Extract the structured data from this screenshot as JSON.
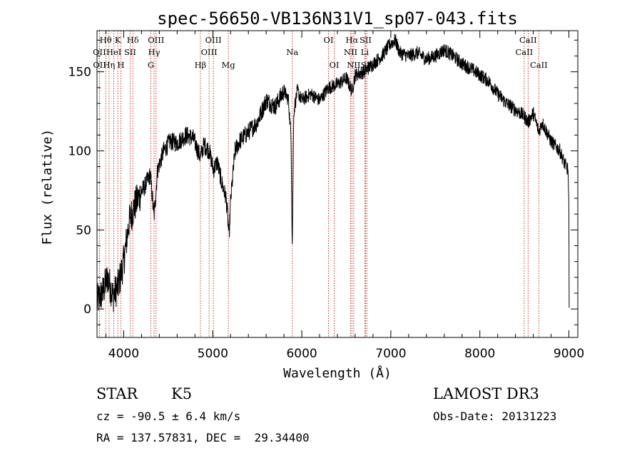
{
  "chart_data": {
    "type": "line",
    "title": "spec-56650-VB136N31V1_sp07-043.fits",
    "xlabel": "Wavelength (Å)",
    "ylabel": "Flux (relative)",
    "xlim": [
      3700,
      9100
    ],
    "ylim": [
      -18,
      176
    ],
    "x_ticks": [
      4000,
      5000,
      6000,
      7000,
      8000,
      9000
    ],
    "y_ticks": [
      0,
      50,
      100,
      150
    ],
    "series": [
      {
        "name": "flux",
        "x": [
          3700,
          3760,
          3820,
          3880,
          3940,
          4000,
          4060,
          4120,
          4180,
          4240,
          4300,
          4340,
          4380,
          4450,
          4520,
          4600,
          4700,
          4780,
          4861,
          4900,
          4960,
          5007,
          5050,
          5100,
          5150,
          5172,
          5183,
          5200,
          5250,
          5300,
          5400,
          5500,
          5600,
          5700,
          5800,
          5850,
          5880,
          5893,
          5910,
          5950,
          6000,
          6100,
          6200,
          6300,
          6400,
          6500,
          6563,
          6600,
          6700,
          6800,
          6900,
          7000,
          7050,
          7100,
          7200,
          7300,
          7400,
          7500,
          7600,
          7700,
          7800,
          7900,
          8000,
          8100,
          8200,
          8300,
          8400,
          8498,
          8542,
          8600,
          8662,
          8700,
          8800,
          8900,
          8950,
          8990,
          9000,
          9001,
          9005
        ],
        "y": [
          5,
          10,
          20,
          8,
          15,
          30,
          55,
          65,
          72,
          78,
          85,
          58,
          88,
          100,
          106,
          105,
          110,
          108,
          96,
          104,
          100,
          88,
          93,
          80,
          70,
          55,
          45,
          68,
          100,
          106,
          112,
          118,
          132,
          128,
          138,
          132,
          108,
          38,
          125,
          138,
          132,
          136,
          132,
          140,
          142,
          146,
          138,
          148,
          150,
          155,
          160,
          168,
          170,
          162,
          160,
          162,
          158,
          160,
          164,
          160,
          155,
          152,
          148,
          144,
          136,
          130,
          126,
          122,
          118,
          124,
          112,
          118,
          106,
          100,
          92,
          88,
          62,
          2,
          2
        ]
      }
    ],
    "line_markers": [
      {
        "label": "Hθ",
        "wl": 3798,
        "row": 1
      },
      {
        "label": "OII",
        "wl": 3727,
        "row": 2
      },
      {
        "label": "OII",
        "wl": 3729,
        "row": 3
      },
      {
        "label": "K",
        "wl": 3934,
        "row": 1
      },
      {
        "label": "HeI",
        "wl": 3889,
        "row": 2
      },
      {
        "label": "Hη",
        "wl": 3835,
        "row": 3
      },
      {
        "label": "Hδ",
        "wl": 4102,
        "row": 1
      },
      {
        "label": "SII",
        "wl": 4072,
        "row": 2
      },
      {
        "label": "H",
        "wl": 3969,
        "row": 3
      },
      {
        "label": "OIII",
        "wl": 4363,
        "row": 1
      },
      {
        "label": "Hγ",
        "wl": 4341,
        "row": 2
      },
      {
        "label": "G",
        "wl": 4305,
        "row": 3
      },
      {
        "label": "OIII",
        "wl": 5007,
        "row": 1
      },
      {
        "label": "OIII",
        "wl": 4959,
        "row": 2
      },
      {
        "label": "Hβ",
        "wl": 4861,
        "row": 3
      },
      {
        "label": "Mg",
        "wl": 5175,
        "row": 3
      },
      {
        "label": "Na",
        "wl": 5893,
        "row": 2
      },
      {
        "label": "OI",
        "wl": 6300,
        "row": 1
      },
      {
        "label": "OI",
        "wl": 6364,
        "row": 3
      },
      {
        "label": "Hα",
        "wl": 6563,
        "row": 1
      },
      {
        "label": "SII",
        "wl": 6716,
        "row": 1
      },
      {
        "label": "NII",
        "wl": 6548,
        "row": 2
      },
      {
        "label": "Li",
        "wl": 6708,
        "row": 2
      },
      {
        "label": "NII",
        "wl": 6583,
        "row": 3
      },
      {
        "label": "SII",
        "wl": 6731,
        "row": 3
      },
      {
        "label": "CaII",
        "wl": 8542,
        "row": 1
      },
      {
        "label": "CaII",
        "wl": 8498,
        "row": 2
      },
      {
        "label": "CaII",
        "wl": 8662,
        "row": 3
      }
    ],
    "marker_color": "#c0392b"
  },
  "info": {
    "object_class": "STAR",
    "subclass": "K5",
    "survey": "LAMOST DR3",
    "cz": "cz = -90.5 ± 6.4 km/s",
    "obs_date": "Obs-Date: 20131223",
    "coords": "RA = 137.57831, DEC =  29.34400"
  }
}
